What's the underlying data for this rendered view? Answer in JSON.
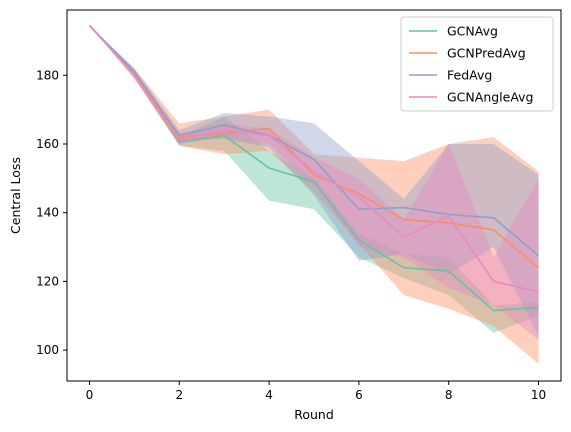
{
  "chart_data": {
    "type": "line",
    "title": "",
    "xlabel": "Round",
    "ylabel": "Central Loss",
    "xlim": [
      -0.5,
      10.5
    ],
    "ylim": [
      91,
      199
    ],
    "xticks": [
      0,
      2,
      4,
      6,
      8,
      10
    ],
    "yticks": [
      100,
      120,
      140,
      160,
      180
    ],
    "grid": false,
    "legend_position": "top-right",
    "x": [
      0,
      1,
      2,
      3,
      4,
      5,
      6,
      7,
      8,
      9,
      10
    ],
    "series": [
      {
        "name": "GCNAvg",
        "color": "#66c2a5",
        "values": [
          194.5,
          180.5,
          160.5,
          162.5,
          153,
          149,
          132,
          124,
          123,
          111.5,
          112.5
        ],
        "upper": [
          194.5,
          181.5,
          162,
          168,
          158,
          150,
          134,
          128,
          127,
          113,
          114
        ],
        "lower": [
          194.5,
          179.5,
          159.5,
          158,
          143.5,
          141,
          127,
          121,
          116,
          105,
          110
        ]
      },
      {
        "name": "GCNPredAvg",
        "color": "#fc8d62",
        "values": [
          194.5,
          180.5,
          162,
          163,
          164.5,
          151,
          145.5,
          138,
          137,
          135,
          124
        ],
        "upper": [
          194.5,
          182,
          166,
          168,
          170,
          157,
          156,
          155,
          160,
          162,
          152
        ],
        "lower": [
          194.5,
          179,
          159.5,
          157,
          158,
          146,
          131,
          116,
          112,
          107,
          96
        ]
      },
      {
        "name": "FedAvg",
        "color": "#8da0cb",
        "values": [
          194.5,
          181,
          162.5,
          165.5,
          162.5,
          155.5,
          141,
          141.5,
          139.5,
          138.5,
          127.5
        ],
        "upper": [
          194.5,
          182,
          164,
          169,
          168,
          166,
          155,
          144,
          160,
          160,
          151
        ],
        "lower": [
          194.5,
          180,
          161,
          161.5,
          159,
          145,
          126,
          128,
          122,
          130,
          104
        ]
      },
      {
        "name": "GCNAngleAvg",
        "color": "#e78ac3",
        "values": [
          194.5,
          180,
          161,
          164,
          162.5,
          152,
          144.5,
          133,
          139,
          120,
          117
        ],
        "upper": [
          194.5,
          181.5,
          163,
          166,
          164.5,
          156,
          150,
          138,
          160,
          127,
          150
        ],
        "lower": [
          194.5,
          179,
          160,
          162,
          160,
          148,
          130,
          127,
          118,
          113,
          103
        ]
      }
    ]
  }
}
